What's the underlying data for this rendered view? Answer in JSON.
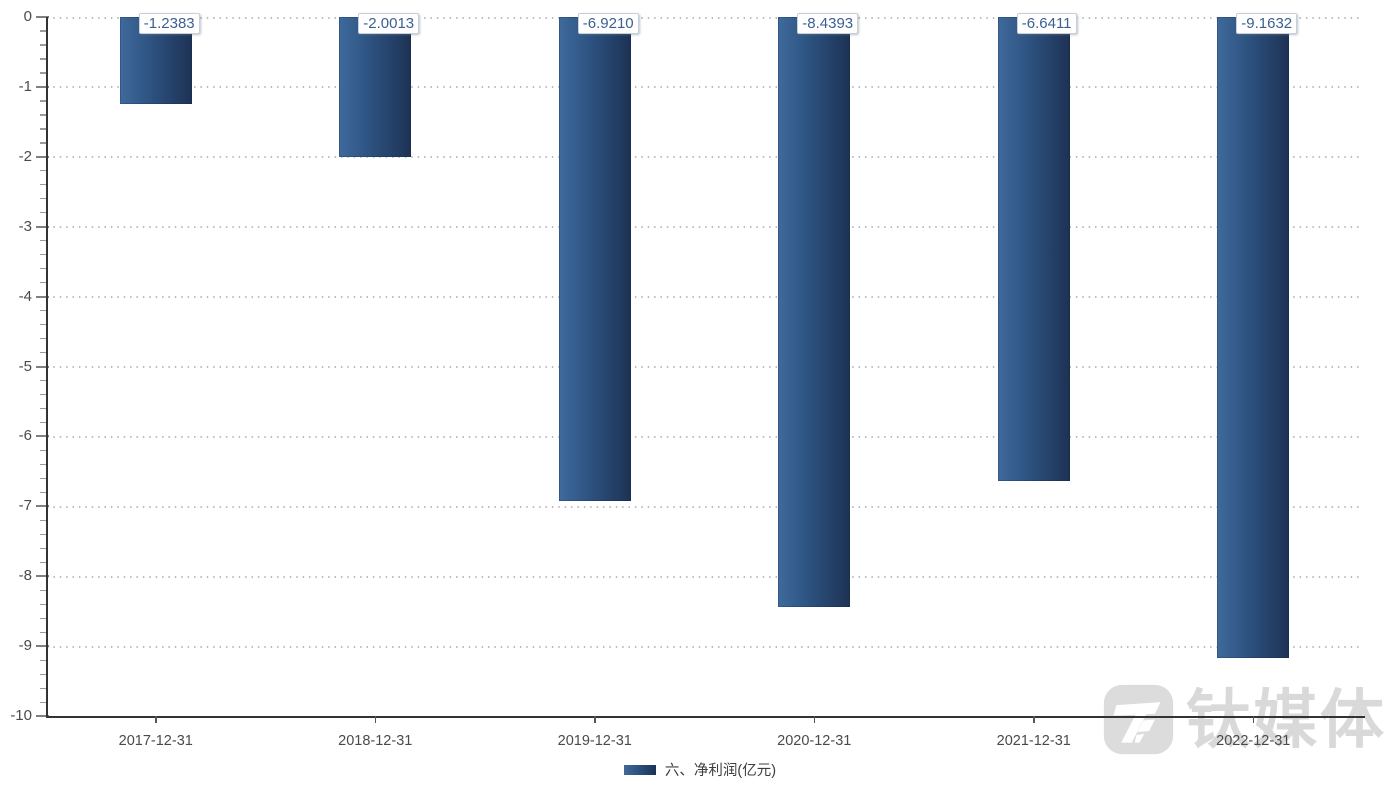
{
  "chart_data": {
    "type": "bar",
    "title": "",
    "xlabel": "",
    "ylabel": "",
    "categories": [
      "2017-12-31",
      "2018-12-31",
      "2019-12-31",
      "2020-12-31",
      "2021-12-31",
      "2022-12-31"
    ],
    "series": [
      {
        "name": "六、净利润(亿元)",
        "values": [
          -1.2383,
          -2.0013,
          -6.921,
          -8.4393,
          -6.6411,
          -9.1632
        ]
      }
    ],
    "value_labels": [
      "-1.2383",
      "-2.0013",
      "-6.9210",
      "-8.4393",
      "-6.6411",
      "-9.1632"
    ],
    "ylim": [
      -10,
      0
    ],
    "y_tick_interval": 1,
    "y_minor_tick_interval": 0.2,
    "y_axis_labels": [
      "0",
      "-1",
      "-2",
      "-3",
      "-4",
      "-5",
      "-6",
      "-7",
      "-8",
      "-9",
      "-10"
    ],
    "grid": "horizontal-dotted",
    "legend_position": "bottom-center"
  },
  "legend": {
    "label": "六、净利润(亿元)"
  },
  "watermark": {
    "text": "钛媒体",
    "logo": "tmtpost-logo"
  },
  "colors": {
    "bar_gradient_start": "#3f6a9c",
    "bar_gradient_mid": "#2d5381",
    "bar_gradient_end": "#1d3254",
    "value_label_text": "#3a5f91",
    "value_label_border": "#c6cfda",
    "axis_line": "#333333",
    "tick_label": "#4a4a4a",
    "gridline": "#bcbcbc",
    "legend_text": "#3d3d3d",
    "watermark": "#d9d9d9",
    "background": "#ffffff"
  }
}
